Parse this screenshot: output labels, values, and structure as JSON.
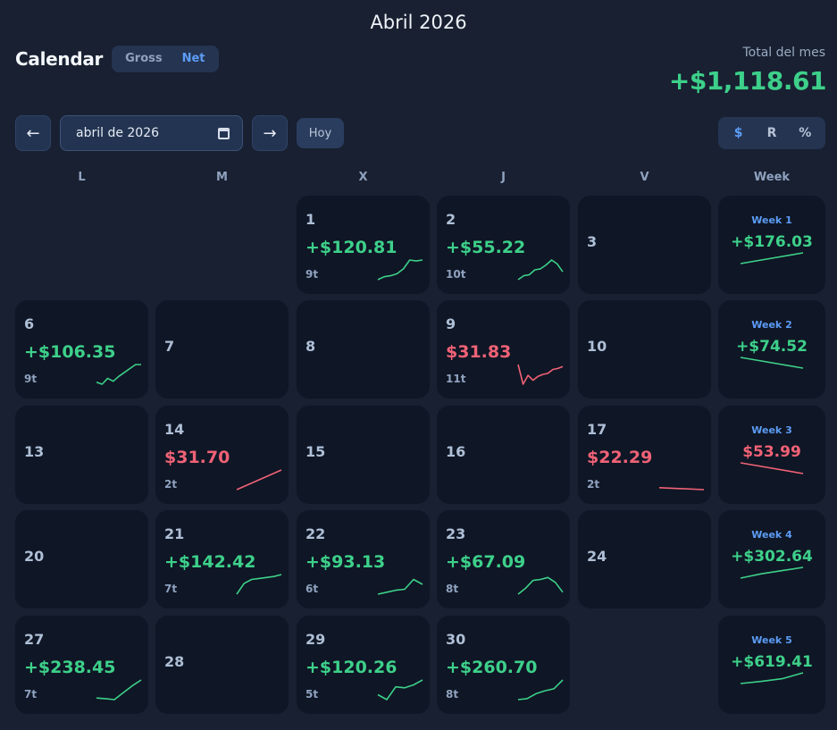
{
  "month_title": "Abril 2026",
  "app_title": "Calendar",
  "mode_toggle": {
    "gross": "Gross",
    "net": "Net",
    "active": "Net"
  },
  "total": {
    "label": "Total del mes",
    "value": "+$1,118.61"
  },
  "nav": {
    "prev": "←",
    "next": "→",
    "today": "Hoy",
    "date_value": "abril de 2026"
  },
  "unit_toggle": {
    "options": [
      "$",
      "R",
      "%"
    ],
    "active": "$"
  },
  "colors": {
    "positive": "#3dd08a",
    "negative": "#f06276",
    "accent": "#5c9cf5"
  },
  "day_headers": [
    "L",
    "M",
    "X",
    "J",
    "V",
    "Week"
  ],
  "days": [
    {
      "day": "1",
      "amount": "+$120.81",
      "trades": "9t",
      "sign": "pos",
      "spark": [
        0,
        0.15,
        0.2,
        0.3,
        0.55,
        1,
        0.95,
        1
      ]
    },
    {
      "day": "2",
      "amount": "+$55.22",
      "trades": "10t",
      "sign": "pos",
      "spark": [
        0,
        0.2,
        0.25,
        0.5,
        0.55,
        0.75,
        1,
        0.8,
        0.4
      ]
    },
    {
      "day": "3"
    },
    {
      "day": "6",
      "amount": "+$106.35",
      "trades": "9t",
      "sign": "pos",
      "spark": [
        0.1,
        0,
        0.3,
        0.15,
        0.4,
        0.6,
        0.8,
        1,
        1
      ]
    },
    {
      "day": "7"
    },
    {
      "day": "8"
    },
    {
      "day": "9",
      "amount": "$31.83",
      "trades": "11t",
      "sign": "neg",
      "spark": [
        1,
        0,
        0.45,
        0.2,
        0.4,
        0.5,
        0.55,
        0.75,
        0.8,
        0.9
      ]
    },
    {
      "day": "10"
    },
    {
      "day": "13"
    },
    {
      "day": "14",
      "amount": "$31.70",
      "trades": "2t",
      "sign": "neg",
      "spark": [
        0,
        1
      ]
    },
    {
      "day": "15"
    },
    {
      "day": "16"
    },
    {
      "day": "17",
      "amount": "$22.29",
      "trades": "2t",
      "sign": "neg",
      "spark": [
        0.1,
        0
      ]
    },
    {
      "day": "20"
    },
    {
      "day": "21",
      "amount": "+$142.42",
      "trades": "7t",
      "sign": "pos",
      "spark": [
        0,
        0.55,
        0.75,
        0.8,
        0.85,
        0.9,
        1
      ]
    },
    {
      "day": "22",
      "amount": "+$93.13",
      "trades": "6t",
      "sign": "pos",
      "spark": [
        0,
        0.1,
        0.2,
        0.25,
        0.75,
        0.5
      ]
    },
    {
      "day": "23",
      "amount": "+$67.09",
      "trades": "8t",
      "sign": "pos",
      "spark": [
        0,
        0.3,
        0.7,
        0.75,
        0.85,
        0.6,
        0.1
      ]
    },
    {
      "day": "24"
    },
    {
      "day": "27",
      "amount": "+$238.45",
      "trades": "7t",
      "sign": "pos",
      "spark": [
        0.08,
        0.05,
        0,
        0.35,
        0.7,
        1
      ]
    },
    {
      "day": "28"
    },
    {
      "day": "29",
      "amount": "+$120.26",
      "trades": "5t",
      "sign": "pos",
      "spark": [
        0.25,
        0,
        0.65,
        0.6,
        0.75,
        1
      ]
    },
    {
      "day": "30",
      "amount": "+$260.70",
      "trades": "8t",
      "sign": "pos",
      "spark": [
        0,
        0.05,
        0.3,
        0.45,
        0.55,
        1
      ]
    }
  ],
  "weeks": [
    {
      "label": "Week 1",
      "amount": "+$176.03",
      "sign": "pos",
      "spark": [
        0,
        1
      ]
    },
    {
      "label": "Week 2",
      "amount": "+$74.52",
      "sign": "pos",
      "spark": [
        1,
        0
      ]
    },
    {
      "label": "Week 3",
      "amount": "$53.99",
      "sign": "neg",
      "spark": [
        1,
        0
      ]
    },
    {
      "label": "Week 4",
      "amount": "+$302.64",
      "sign": "pos",
      "spark": [
        0,
        0.4,
        0.7,
        1
      ]
    },
    {
      "label": "Week 5",
      "amount": "+$619.41",
      "sign": "pos",
      "spark": [
        0,
        0.2,
        0.45,
        1
      ]
    }
  ]
}
